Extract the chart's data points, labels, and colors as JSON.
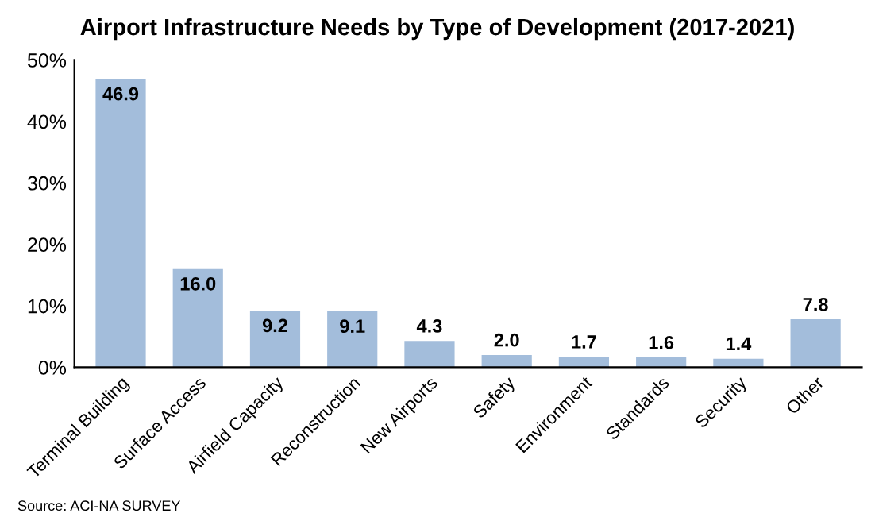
{
  "chart_data": {
    "type": "bar",
    "title": "Airport Infrastructure Needs by Type of Development (2017-2021)",
    "categories": [
      "Terminal Building",
      "Surface Access",
      "Airfield Capacity",
      "Reconstruction",
      "New Airports",
      "Safety",
      "Environment",
      "Standards",
      "Security",
      "Other"
    ],
    "values": [
      46.9,
      16.0,
      9.2,
      9.1,
      4.3,
      2.0,
      1.7,
      1.6,
      1.4,
      7.8
    ],
    "value_labels": [
      "46.9",
      "16.0",
      "9.2",
      "9.1",
      "4.3",
      "2.0",
      "1.7",
      "1.6",
      "1.4",
      "7.8"
    ],
    "color": "#a3bddb",
    "ylim": [
      0,
      50
    ],
    "yticks": [
      {
        "value": 0,
        "label": "0%"
      },
      {
        "value": 10,
        "label": "10%"
      },
      {
        "value": 20,
        "label": "20%"
      },
      {
        "value": 30,
        "label": "30%"
      },
      {
        "value": 40,
        "label": "40%"
      },
      {
        "value": 50,
        "label": "50%"
      }
    ],
    "grid": false,
    "legend": false,
    "annotations": [
      "Source: ACI-NA SURVEY"
    ]
  }
}
